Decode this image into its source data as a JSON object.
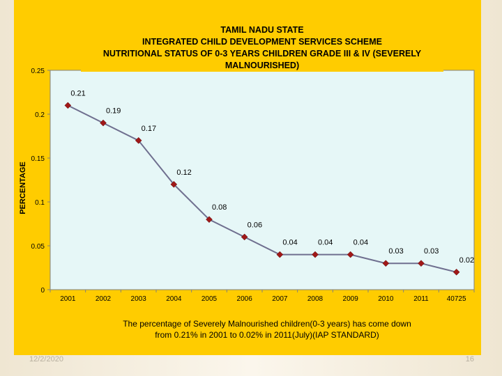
{
  "chart_data": {
    "type": "line",
    "title_lines": [
      "TAMIL NADU STATE",
      "INTEGRATED CHILD DEVELOPMENT SERVICES SCHEME",
      "NUTRITIONAL STATUS OF 0-3 YEARS CHILDREN GRADE III & IV (SEVERELY",
      "MALNOURISHED)"
    ],
    "ylabel": "PERCENTAGE",
    "xlabel": "",
    "categories": [
      "2001",
      "2002",
      "2003",
      "2004",
      "2005",
      "2006",
      "2007",
      "2008",
      "2009",
      "2010",
      "2011",
      "40725"
    ],
    "values": [
      0.21,
      0.19,
      0.17,
      0.12,
      0.08,
      0.06,
      0.04,
      0.04,
      0.04,
      0.03,
      0.03,
      0.02
    ],
    "data_labels": [
      "0.21",
      "0.19",
      "0.17",
      "0.12",
      "0.08",
      "0.06",
      "0.04",
      "0.04",
      "0.04",
      "0.03",
      "0.03",
      "0.02"
    ],
    "yticks": [
      0,
      0.05,
      0.1,
      0.15,
      0.2,
      0.25
    ],
    "ytick_labels": [
      "0",
      "0.05",
      "0.1",
      "0.15",
      "0.2",
      "0.25"
    ],
    "ylim": [
      0,
      0.25
    ],
    "grid": false,
    "legend": "none",
    "caption_lines": [
      "The percentage of Severely Malnourished children(0-3 years) has come down",
      "from 0.21% in 2001 to 0.02% in 2011(July)(IAP STANDARD)"
    ],
    "colors": {
      "background": "#ffcc00",
      "plot_area": "#e6f7f7",
      "line": "#6f6f8f",
      "marker": "#a01818"
    }
  },
  "footer": {
    "date": "12/2/2020",
    "page": "16"
  }
}
